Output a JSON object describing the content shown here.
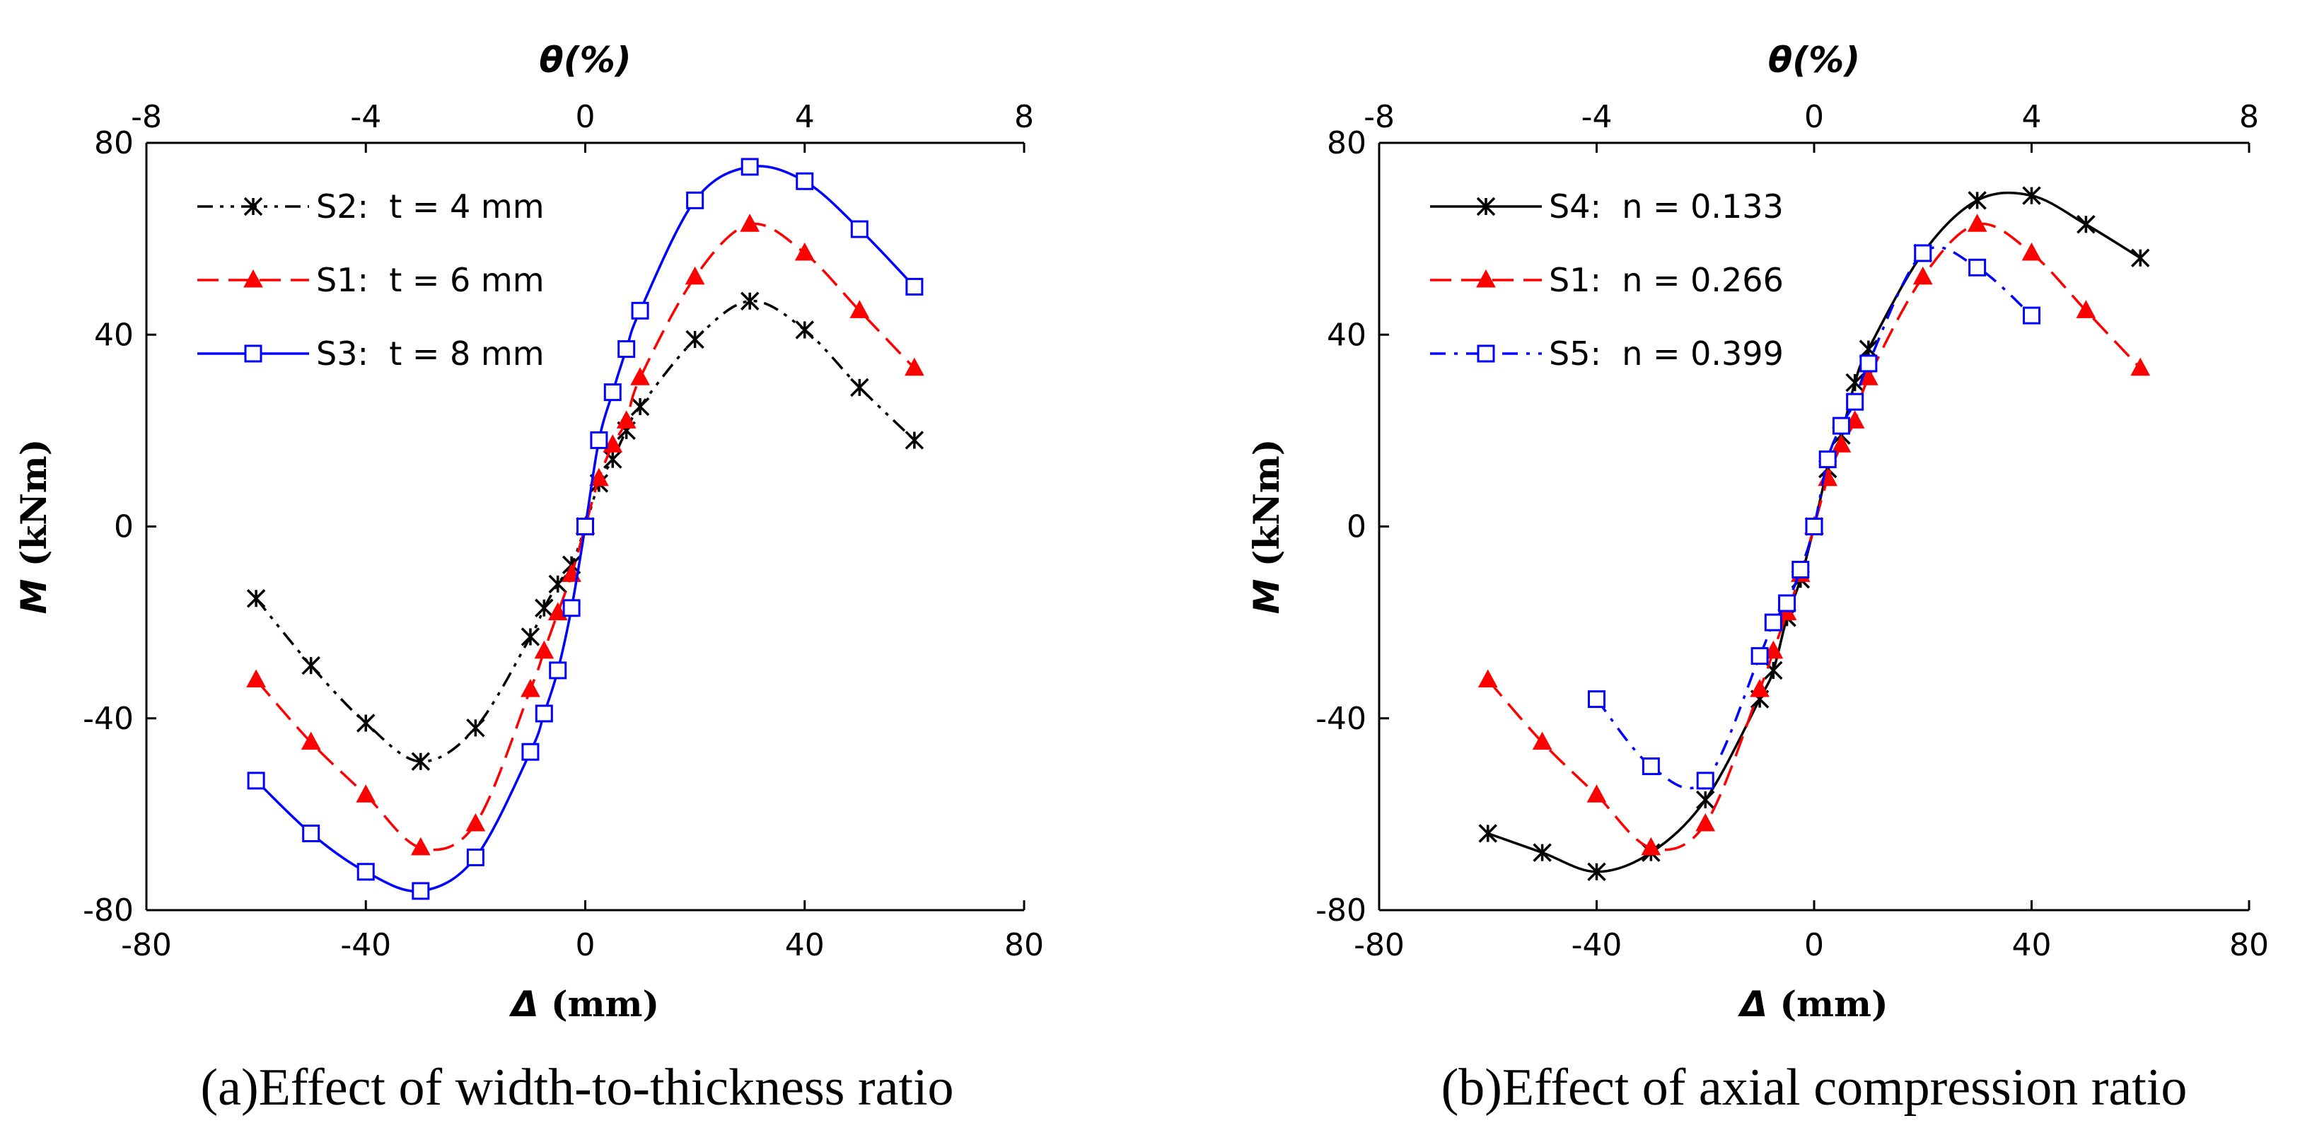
{
  "chart_data": [
    {
      "type": "line",
      "caption": "(a)Effect of width-to-thickness ratio",
      "xlabel_sym": "Δ",
      "xlabel_unit": " (mm)",
      "ylabel_sym": "M",
      "ylabel_unit": " (kNm)",
      "x2label": "θ(%)",
      "xlim": [
        -80,
        80
      ],
      "ylim": [
        -80,
        80
      ],
      "x2lim": [
        -8,
        8
      ],
      "xticks": [
        "-80",
        "-40",
        "0",
        "40",
        "80"
      ],
      "yticks": [
        "80",
        "40",
        "0",
        "-40",
        "-80"
      ],
      "x2ticks": [
        "-8",
        "-4",
        "0",
        "4",
        "8"
      ],
      "legend_position": "top-left",
      "series": [
        {
          "name": "S2:  t = 4 mm",
          "color": "#000000",
          "marker": "asterisk",
          "dash": "dashdotdot",
          "x": [
            -60,
            -50,
            -40,
            -30,
            -20,
            -10,
            -7.5,
            -5,
            -2.5,
            0,
            2.5,
            5,
            7.5,
            10,
            20,
            30,
            40,
            50,
            60
          ],
          "y": [
            -15,
            -29,
            -41,
            -49,
            -42,
            -23,
            -17,
            -12,
            -8,
            0,
            9,
            14,
            20,
            25,
            39,
            47,
            41,
            29,
            18
          ]
        },
        {
          "name": "S1:  t = 6 mm",
          "color": "#ff0000",
          "marker": "triangle",
          "dash": "dash",
          "x": [
            -60,
            -50,
            -40,
            -30,
            -20,
            -10,
            -7.5,
            -5,
            -2.5,
            0,
            2.5,
            5,
            7.5,
            10,
            20,
            30,
            40,
            50,
            60
          ],
          "y": [
            -32,
            -45,
            -56,
            -67,
            -62,
            -34,
            -26,
            -18,
            -10,
            0,
            10,
            17,
            22,
            31,
            52,
            63,
            57,
            45,
            33
          ]
        },
        {
          "name": "S3:  t = 8 mm",
          "color": "#0000ff",
          "marker": "square",
          "dash": "solid",
          "x": [
            -60,
            -50,
            -40,
            -30,
            -20,
            -10,
            -7.5,
            -5,
            -2.5,
            0,
            2.5,
            5,
            7.5,
            10,
            20,
            30,
            40,
            50,
            60
          ],
          "y": [
            -53,
            -64,
            -72,
            -76,
            -69,
            -47,
            -39,
            -30,
            -17,
            0,
            18,
            28,
            37,
            45,
            68,
            75,
            72,
            62,
            50
          ]
        }
      ]
    },
    {
      "type": "line",
      "caption": "(b)Effect of axial compression ratio",
      "xlabel_sym": "Δ",
      "xlabel_unit": " (mm)",
      "ylabel_sym": "M",
      "ylabel_unit": " (kNm)",
      "x2label": "θ(%)",
      "xlim": [
        -80,
        80
      ],
      "ylim": [
        -80,
        80
      ],
      "x2lim": [
        -8,
        8
      ],
      "xticks": [
        "-80",
        "-40",
        "0",
        "40",
        "80"
      ],
      "yticks": [
        "80",
        "40",
        "0",
        "-40",
        "-80"
      ],
      "x2ticks": [
        "-8",
        "-4",
        "0",
        "4",
        "8"
      ],
      "legend_position": "top-left",
      "series": [
        {
          "name": "S4:  n = 0.133",
          "color": "#000000",
          "marker": "asterisk",
          "dash": "solid",
          "x": [
            -60,
            -50,
            -40,
            -30,
            -20,
            -10,
            -7.5,
            -5,
            -2.5,
            0,
            2.5,
            5,
            7.5,
            10,
            20,
            30,
            40,
            50,
            60
          ],
          "y": [
            -64,
            -68,
            -72,
            -68,
            -57,
            -36,
            -30,
            -19,
            -11,
            0,
            12,
            19,
            30,
            37,
            57,
            68,
            69,
            63,
            56
          ]
        },
        {
          "name": "S1:  n = 0.266",
          "color": "#ff0000",
          "marker": "triangle",
          "dash": "dash",
          "x": [
            -60,
            -50,
            -40,
            -30,
            -20,
            -10,
            -7.5,
            -5,
            -2.5,
            0,
            2.5,
            5,
            7.5,
            10,
            20,
            30,
            40,
            50,
            60
          ],
          "y": [
            -32,
            -45,
            -56,
            -67,
            -62,
            -34,
            -26,
            -18,
            -10,
            0,
            10,
            17,
            22,
            31,
            52,
            63,
            57,
            45,
            33
          ]
        },
        {
          "name": "S5:  n = 0.399",
          "color": "#0000ff",
          "marker": "square",
          "dash": "dashdot",
          "x": [
            -40,
            -30,
            -20,
            -10,
            -7.5,
            -5,
            -2.5,
            0,
            2.5,
            5,
            7.5,
            10,
            20,
            30,
            40
          ],
          "y": [
            -36,
            -50,
            -53,
            -27,
            -20,
            -16,
            -9,
            0,
            14,
            21,
            26,
            34,
            57,
            54,
            44
          ]
        }
      ]
    }
  ]
}
